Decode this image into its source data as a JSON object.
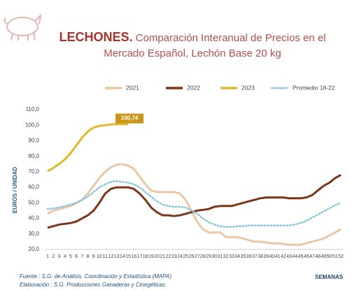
{
  "chart_data": {
    "type": "line",
    "title": "LECHONES.",
    "subtitle": "Comparación Interanual de Precios en el Mercado Español, Lechón Base 20 kg",
    "ylabel": "EUROS / UNIDAD",
    "xlabel": "SEMANAS",
    "footnotes": [
      "Fuente : S.G. de Análisis, Coordinación y Estadística (MAPA)",
      "Elaboración : S.G. Producciones Ganaderas y Cinegéticas."
    ],
    "categories": [
      "1",
      "2",
      "3",
      "4",
      "5",
      "6",
      "7",
      "8",
      "9",
      "10",
      "11",
      "12",
      "13",
      "14",
      "15",
      "16",
      "17",
      "18",
      "19",
      "20",
      "21",
      "22",
      "23",
      "24",
      "25",
      "26",
      "27",
      "28",
      "29",
      "30",
      "31",
      "32",
      "33",
      "34",
      "35",
      "36",
      "37",
      "38",
      "39",
      "40",
      "41",
      "42",
      "43",
      "44",
      "45",
      "46",
      "47",
      "48",
      "49",
      "50",
      "51",
      "52"
    ],
    "ylim": [
      20,
      110
    ],
    "yticks": [
      {
        "value": 20,
        "label": "20,0"
      },
      {
        "value": 30,
        "label": "30,0"
      },
      {
        "value": 40,
        "label": "40,0"
      },
      {
        "value": 50,
        "label": "50,0"
      },
      {
        "value": 60,
        "label": "60,0"
      },
      {
        "value": 70,
        "label": "70,0"
      },
      {
        "value": 80,
        "label": "80,0"
      },
      {
        "value": 90,
        "label": "90,0"
      },
      {
        "value": 100,
        "label": "100,0"
      },
      {
        "value": 110,
        "label": "110,0"
      }
    ],
    "grid": false,
    "legend": "top",
    "series": [
      {
        "name": "2021",
        "color": "#e8c8a6",
        "dash": "solid",
        "values": [
          43,
          45,
          46,
          47,
          48,
          50,
          52,
          56,
          61,
          66,
          70,
          73,
          74.5,
          75,
          74,
          72,
          67,
          62,
          58,
          57,
          57,
          57,
          57,
          56,
          52,
          45,
          38,
          33,
          31,
          31,
          31,
          28,
          28,
          28,
          27,
          26,
          25,
          25,
          24.5,
          24,
          24,
          23.5,
          23,
          23,
          23,
          24,
          25,
          26,
          27,
          29,
          31,
          33
        ]
      },
      {
        "name": "2022",
        "color": "#7a3618",
        "dash": "solid",
        "values": [
          34,
          35,
          36,
          36.5,
          37,
          38,
          40,
          42,
          45,
          50,
          56,
          59,
          60,
          60,
          60,
          59,
          56,
          52,
          47,
          44,
          42,
          42,
          41.5,
          42,
          43,
          44,
          45,
          45.5,
          46,
          47.5,
          48,
          48,
          48,
          49,
          50,
          51,
          52,
          53,
          53.5,
          53.5,
          53.5,
          53.5,
          53,
          53,
          53,
          53.5,
          55,
          58,
          61,
          63,
          66,
          68
        ]
      },
      {
        "name": "2023",
        "color": "#e0b92c",
        "dash": "solid",
        "values": [
          70.5,
          72.5,
          75,
          78,
          82,
          87,
          92,
          96,
          98.5,
          99.5,
          100,
          100.5,
          100.7,
          100.7,
          100.74,
          null,
          null,
          null,
          null,
          null,
          null,
          null,
          null,
          null,
          null,
          null,
          null,
          null,
          null,
          null,
          null,
          null,
          null,
          null,
          null,
          null,
          null,
          null,
          null,
          null,
          null,
          null,
          null,
          null,
          null,
          null,
          null,
          null,
          null,
          null,
          null,
          null
        ],
        "value_labels": [
          null,
          null,
          null,
          null,
          null,
          null,
          null,
          null,
          null,
          null,
          null,
          null,
          null,
          null,
          "100,74",
          null,
          null,
          null,
          null,
          null,
          null,
          null,
          null,
          null,
          null,
          null,
          null,
          null,
          null,
          null,
          null,
          null,
          null,
          null,
          null,
          null,
          null,
          null,
          null,
          null,
          null,
          null,
          null,
          null,
          null,
          null,
          null,
          null,
          null,
          null,
          null,
          null
        ]
      },
      {
        "name": "Promedio 18-22",
        "color": "#8cc4dc",
        "dash": "dotted",
        "values": [
          46,
          46.5,
          47,
          48,
          49,
          50,
          52,
          54,
          57,
          60,
          62,
          63.5,
          64,
          63.5,
          63,
          62,
          60,
          57,
          54,
          51,
          49,
          48,
          47.5,
          47.5,
          47,
          45,
          43,
          40,
          37.5,
          36,
          35,
          34.5,
          34.5,
          35,
          35,
          35.5,
          35.5,
          35.5,
          35.5,
          35.5,
          35.5,
          35.5,
          35.5,
          36,
          37,
          38.5,
          40.5,
          42.5,
          44.5,
          46.5,
          48.5,
          50
        ]
      }
    ]
  }
}
